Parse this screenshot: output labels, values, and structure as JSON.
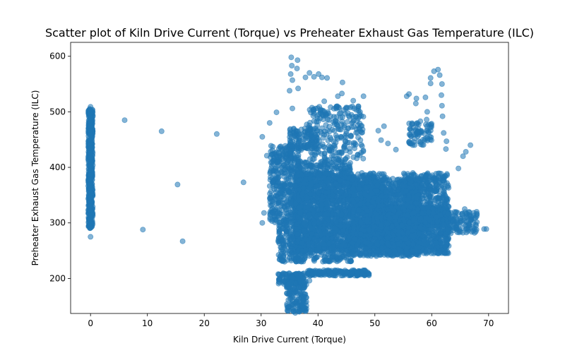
{
  "chart_data": {
    "type": "scatter",
    "title": "Scatter plot of Kiln Drive Current (Torque) vs Preheater Exhaust Gas Temperature (ILC)",
    "xlabel": "Kiln Drive Current (Torque)",
    "ylabel": "Preheater Exhaust Gas Temperature (ILC)",
    "xlim": [
      -3.5,
      73.5
    ],
    "ylim": [
      137,
      625
    ],
    "xticks": [
      0,
      10,
      20,
      30,
      40,
      50,
      60,
      70
    ],
    "yticks": [
      200,
      300,
      400,
      500,
      600
    ],
    "grid": false,
    "marker_color": "#1f77b4",
    "marker_alpha": 0.55,
    "series": [
      {
        "points": [
          [
            0,
            509
          ],
          [
            0,
            502
          ],
          [
            0,
            497
          ],
          [
            0,
            490
          ],
          [
            0,
            482
          ],
          [
            0,
            474
          ],
          [
            0,
            466
          ],
          [
            0,
            458
          ],
          [
            0,
            450
          ],
          [
            0,
            442
          ],
          [
            0,
            434
          ],
          [
            0,
            426
          ],
          [
            0,
            418
          ],
          [
            0,
            410
          ],
          [
            0,
            402
          ],
          [
            0,
            394
          ],
          [
            0,
            386
          ],
          [
            0,
            378
          ],
          [
            0,
            370
          ],
          [
            0,
            362
          ],
          [
            0,
            354
          ],
          [
            0,
            346
          ],
          [
            0,
            338
          ],
          [
            0,
            330
          ],
          [
            0,
            322
          ],
          [
            0,
            314
          ],
          [
            0,
            306
          ],
          [
            0,
            298
          ],
          [
            0,
            291
          ],
          [
            0,
            275
          ],
          [
            6,
            485
          ],
          [
            12.5,
            465
          ],
          [
            22.2,
            460
          ],
          [
            15.3,
            369
          ],
          [
            9.2,
            288
          ],
          [
            16.2,
            267
          ],
          [
            26.9,
            373
          ],
          [
            30.2,
            455
          ],
          [
            31,
            421
          ],
          [
            30.5,
            318
          ],
          [
            30.2,
            300
          ],
          [
            31.5,
            480
          ],
          [
            32.7,
            499
          ],
          [
            35.3,
            598
          ],
          [
            35.4,
            583
          ],
          [
            36.4,
            593
          ],
          [
            36.3,
            578
          ],
          [
            35.2,
            568
          ],
          [
            35.5,
            557
          ],
          [
            35,
            538
          ],
          [
            36.5,
            542
          ],
          [
            35.5,
            506
          ],
          [
            37.8,
            562
          ],
          [
            38.5,
            570
          ],
          [
            39.3,
            563
          ],
          [
            40.1,
            568
          ],
          [
            40.7,
            562
          ],
          [
            41.6,
            561
          ],
          [
            41.1,
            519
          ],
          [
            43.4,
            510
          ],
          [
            44.3,
            553
          ],
          [
            43.5,
            528
          ],
          [
            44.2,
            533
          ],
          [
            45.7,
            508
          ],
          [
            47.1,
            510
          ],
          [
            46.2,
            520
          ],
          [
            48,
            528
          ],
          [
            50.6,
            466
          ],
          [
            51.1,
            449
          ],
          [
            51.6,
            474
          ],
          [
            52.3,
            443
          ],
          [
            53.7,
            432
          ],
          [
            55.6,
            528
          ],
          [
            56,
            532
          ],
          [
            56.6,
            478
          ],
          [
            57.2,
            515
          ],
          [
            57.5,
            465
          ],
          [
            58.2,
            465
          ],
          [
            58,
            483
          ],
          [
            58.9,
            526
          ],
          [
            57.3,
            524
          ],
          [
            59.2,
            500
          ],
          [
            59.1,
            486
          ],
          [
            59.2,
            454
          ],
          [
            59.8,
            561
          ],
          [
            59.8,
            551
          ],
          [
            60.4,
            573
          ],
          [
            61.1,
            576
          ],
          [
            61.4,
            566
          ],
          [
            61.8,
            550
          ],
          [
            61.7,
            530
          ],
          [
            61.8,
            511
          ],
          [
            61.9,
            492
          ],
          [
            62.1,
            462
          ],
          [
            62.6,
            447
          ],
          [
            62.5,
            433
          ],
          [
            64.7,
            398
          ],
          [
            65.5,
            420
          ],
          [
            66,
            428
          ],
          [
            66.8,
            440
          ],
          [
            65.8,
            325
          ],
          [
            67.9,
            320
          ],
          [
            69.2,
            289
          ],
          [
            69.6,
            289
          ],
          [
            34.9,
            190
          ],
          [
            35.1,
            172
          ],
          [
            35.5,
            155
          ],
          [
            35.7,
            141
          ],
          [
            36,
            138
          ],
          [
            36.7,
            140
          ],
          [
            37.4,
            148
          ],
          [
            38.5,
            196
          ],
          [
            39.5,
            211
          ],
          [
            42,
            211
          ],
          [
            44,
            211
          ],
          [
            46,
            211
          ],
          [
            47.6,
            211
          ],
          [
            33.3,
            197
          ],
          [
            37.5,
            209
          ]
        ],
        "clusters": [
          {
            "x": [
              31.5,
              37
            ],
            "y": [
              300,
              440
            ],
            "n": 450
          },
          {
            "x": [
              33,
              38
            ],
            "y": [
              230,
              300
            ],
            "n": 220
          },
          {
            "x": [
              36,
              46
            ],
            "y": [
              230,
              410
            ],
            "n": 900
          },
          {
            "x": [
              38,
              48
            ],
            "y": [
              410,
              510
            ],
            "n": 260
          },
          {
            "x": [
              36,
              52
            ],
            "y": [
              250,
              390
            ],
            "n": 1500
          },
          {
            "x": [
              46,
              58
            ],
            "y": [
              240,
              380
            ],
            "n": 1300
          },
          {
            "x": [
              52,
              63
            ],
            "y": [
              245,
              330
            ],
            "n": 1000
          },
          {
            "x": [
              55,
              63
            ],
            "y": [
              300,
              390
            ],
            "n": 450
          },
          {
            "x": [
              56,
              60
            ],
            "y": [
              440,
              480
            ],
            "n": 70
          },
          {
            "x": [
              62,
              68
            ],
            "y": [
              280,
              320
            ],
            "n": 130
          },
          {
            "x": [
              33,
              37.5
            ],
            "y": [
              190,
              210
            ],
            "n": 120
          },
          {
            "x": [
              34.5,
              38
            ],
            "y": [
              140,
              195
            ],
            "n": 150
          },
          {
            "x": [
              38,
              49
            ],
            "y": [
              205,
              215
            ],
            "n": 180
          },
          {
            "x": [
              35,
              40
            ],
            "y": [
              430,
              470
            ],
            "n": 110
          },
          {
            "x": [
              -0.4,
              0.4
            ],
            "y": [
              290,
              505
            ],
            "n": 500
          }
        ]
      }
    ]
  }
}
